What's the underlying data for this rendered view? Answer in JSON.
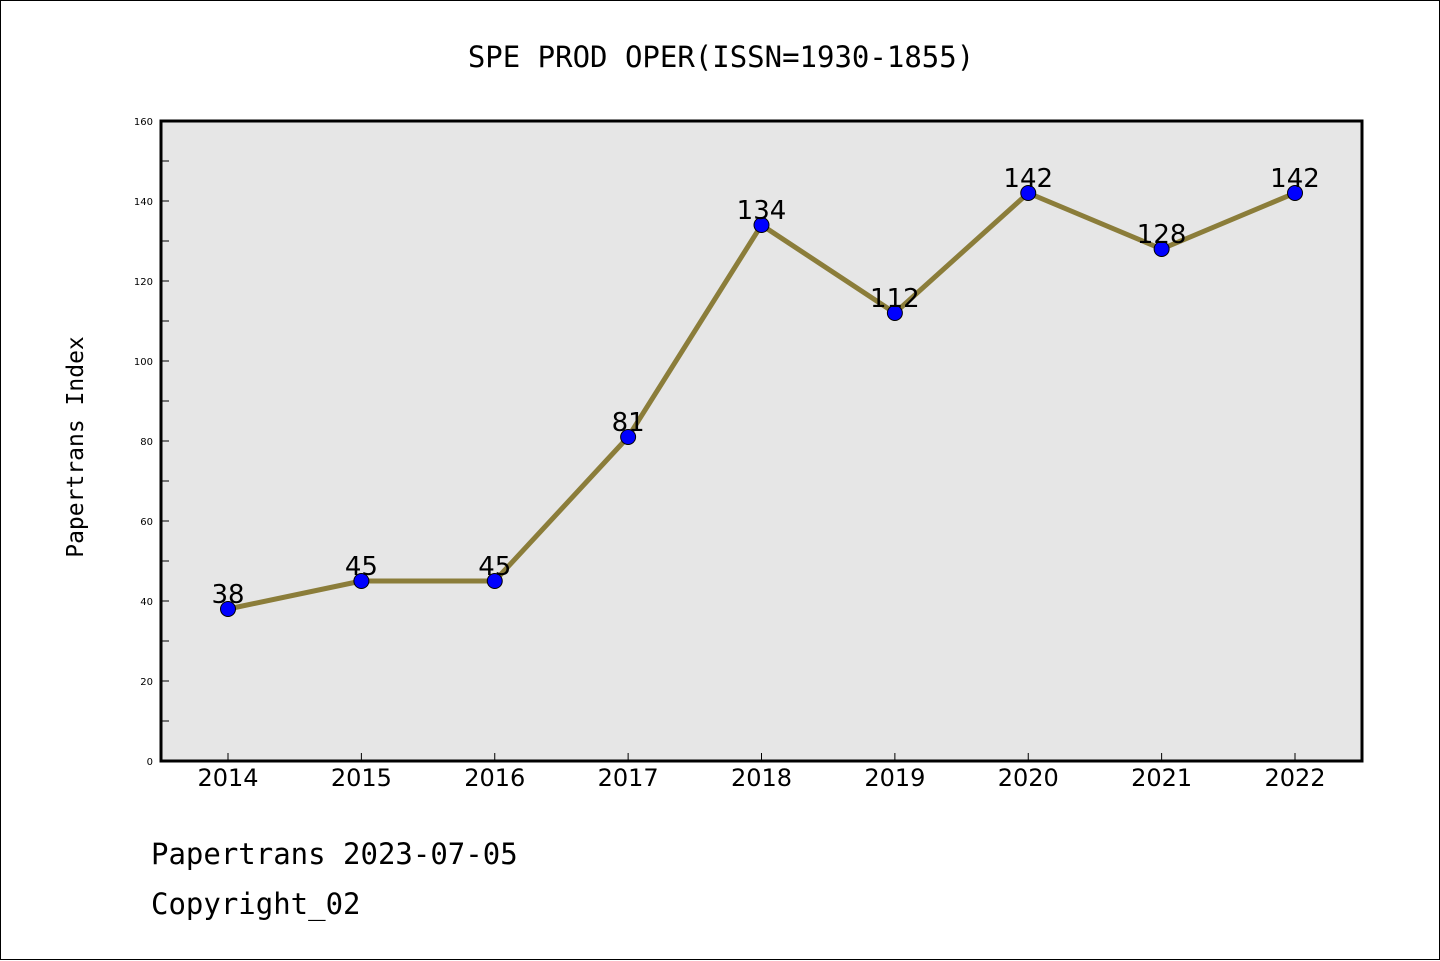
{
  "chart_data": {
    "type": "line",
    "title": "SPE PROD OPER(ISSN=1930-1855)",
    "ylabel": "Papertrans Index",
    "xlabel": "",
    "categories": [
      "2014",
      "2015",
      "2016",
      "2017",
      "2018",
      "2019",
      "2020",
      "2021",
      "2022"
    ],
    "series": [
      {
        "values": [
          38,
          45,
          45,
          81,
          134,
          112,
          142,
          128,
          142
        ]
      }
    ],
    "ylim": [
      0,
      160
    ],
    "yticks": [
      0,
      20,
      40,
      60,
      80,
      100,
      120,
      140,
      160
    ],
    "grid": false,
    "colors": {
      "line": "#8B7D3A",
      "marker": "#0000FF",
      "plot_background": "#E6E6E6"
    }
  },
  "footer": {
    "date_line": "Papertrans 2023-07-05",
    "copyright": "Copyright_02"
  }
}
